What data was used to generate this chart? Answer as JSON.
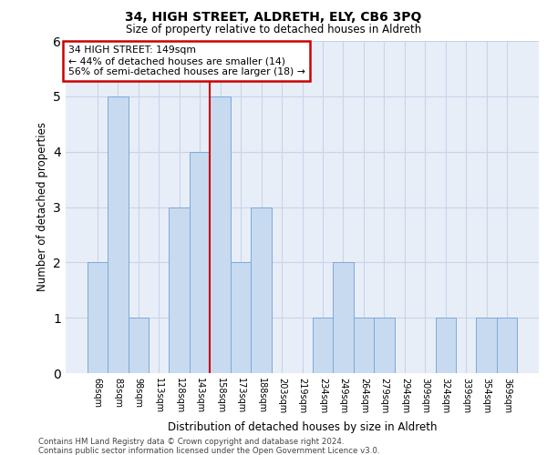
{
  "title1": "34, HIGH STREET, ALDRETH, ELY, CB6 3PQ",
  "title2": "Size of property relative to detached houses in Aldreth",
  "xlabel": "Distribution of detached houses by size in Aldreth",
  "ylabel": "Number of detached properties",
  "categories": [
    "68sqm",
    "83sqm",
    "98sqm",
    "113sqm",
    "128sqm",
    "143sqm",
    "158sqm",
    "173sqm",
    "188sqm",
    "203sqm",
    "219sqm",
    "234sqm",
    "249sqm",
    "264sqm",
    "279sqm",
    "294sqm",
    "309sqm",
    "324sqm",
    "339sqm",
    "354sqm",
    "369sqm"
  ],
  "values": [
    2,
    5,
    1,
    0,
    3,
    4,
    5,
    2,
    3,
    0,
    0,
    1,
    2,
    1,
    1,
    0,
    0,
    1,
    0,
    1,
    1
  ],
  "bar_color": "#c8daf0",
  "bar_edge_color": "#7aaad8",
  "annotation_line1": "34 HIGH STREET: 149sqm",
  "annotation_line2": "← 44% of detached houses are smaller (14)",
  "annotation_line3": "56% of semi-detached houses are larger (18) →",
  "annotation_box_color": "#ffffff",
  "annotation_box_edge_color": "#cc0000",
  "vline_color": "#cc0000",
  "grid_color": "#c8d4e8",
  "background_color": "#e8eef8",
  "ylim": [
    0,
    6
  ],
  "yticks": [
    0,
    1,
    2,
    3,
    4,
    5,
    6
  ],
  "footnote1": "Contains HM Land Registry data © Crown copyright and database right 2024.",
  "footnote2": "Contains public sector information licensed under the Open Government Licence v3.0."
}
